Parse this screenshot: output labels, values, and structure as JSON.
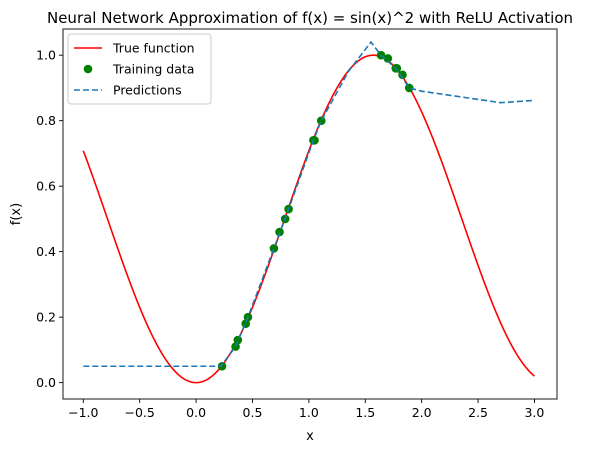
{
  "chart_data": {
    "type": "line",
    "title": "Neural Network Approximation of f(x) = sin(x)^2 with ReLU Activation",
    "xlabel": "x",
    "ylabel": "f(x)",
    "xlim": [
      -1.18,
      3.2
    ],
    "ylim": [
      -0.05,
      1.08
    ],
    "xticks": [
      -1.0,
      -0.5,
      0.0,
      0.5,
      1.0,
      1.5,
      2.0,
      2.5,
      3.0
    ],
    "xtick_labels": [
      "−1.0",
      "−0.5",
      "0.0",
      "0.5",
      "1.0",
      "1.5",
      "2.0",
      "2.5",
      "3.0"
    ],
    "yticks": [
      0.0,
      0.2,
      0.4,
      0.6,
      0.8,
      1.0
    ],
    "ytick_labels": [
      "0.0",
      "0.2",
      "0.4",
      "0.6",
      "0.8",
      "1.0"
    ],
    "grid": false,
    "legend_position": "top-left",
    "series": [
      {
        "name": "True function",
        "kind": "function",
        "function": "sin(x)^2",
        "x_range": [
          -1.0,
          3.0
        ],
        "color": "#ff0000",
        "style": "solid"
      },
      {
        "name": "Training data",
        "kind": "scatter",
        "color": "#008000",
        "points": [
          [
            0.23,
            0.05
          ],
          [
            0.35,
            0.11
          ],
          [
            0.37,
            0.13
          ],
          [
            0.44,
            0.18
          ],
          [
            0.46,
            0.2
          ],
          [
            0.69,
            0.41
          ],
          [
            0.74,
            0.46
          ],
          [
            0.79,
            0.5
          ],
          [
            0.82,
            0.53
          ],
          [
            1.04,
            0.74
          ],
          [
            1.05,
            0.74
          ],
          [
            1.11,
            0.8
          ],
          [
            1.64,
            1.0
          ],
          [
            1.7,
            0.99
          ],
          [
            1.77,
            0.96
          ],
          [
            1.78,
            0.96
          ],
          [
            1.83,
            0.94
          ],
          [
            1.89,
            0.9
          ]
        ]
      },
      {
        "name": "Predictions",
        "kind": "line",
        "color": "#1f77b4",
        "style": "dashed",
        "points": [
          [
            -1.0,
            0.05
          ],
          [
            0.22,
            0.05
          ],
          [
            0.35,
            0.11
          ],
          [
            0.46,
            0.2
          ],
          [
            0.69,
            0.41
          ],
          [
            0.82,
            0.53
          ],
          [
            1.04,
            0.74
          ],
          [
            1.11,
            0.8
          ],
          [
            1.35,
            0.95
          ],
          [
            1.55,
            1.04
          ],
          [
            1.64,
            1.0
          ],
          [
            1.77,
            0.96
          ],
          [
            1.89,
            0.9
          ],
          [
            2.0,
            0.89
          ],
          [
            2.4,
            0.87
          ],
          [
            2.7,
            0.855
          ],
          [
            3.0,
            0.862
          ]
        ]
      }
    ]
  }
}
